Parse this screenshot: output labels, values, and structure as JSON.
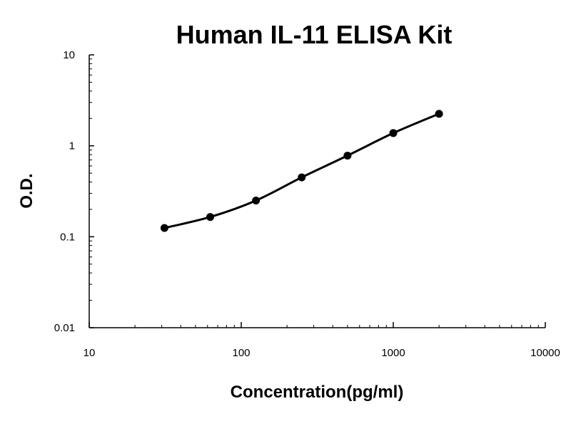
{
  "chart_data": {
    "type": "line",
    "title": "Human IL-11 ELISA Kit",
    "xlabel": "Concentration(pg/ml)",
    "ylabel": "O.D.",
    "x_scale": "log",
    "y_scale": "log",
    "xlim": [
      10,
      10000
    ],
    "ylim": [
      0.01,
      10
    ],
    "x_ticks": [
      "10",
      "100",
      "1000",
      "10000"
    ],
    "y_ticks": [
      "0.01",
      "0.1",
      "1",
      "10"
    ],
    "grid": false,
    "legend": "none",
    "series": [
      {
        "x": [
          31.25,
          62.5,
          125,
          250,
          500,
          1000,
          2000
        ],
        "y": [
          0.125,
          0.165,
          0.25,
          0.45,
          0.78,
          1.38,
          2.25
        ]
      }
    ],
    "colors": {
      "line": "#000000",
      "marker": "#000000",
      "axis": "#000000"
    }
  }
}
